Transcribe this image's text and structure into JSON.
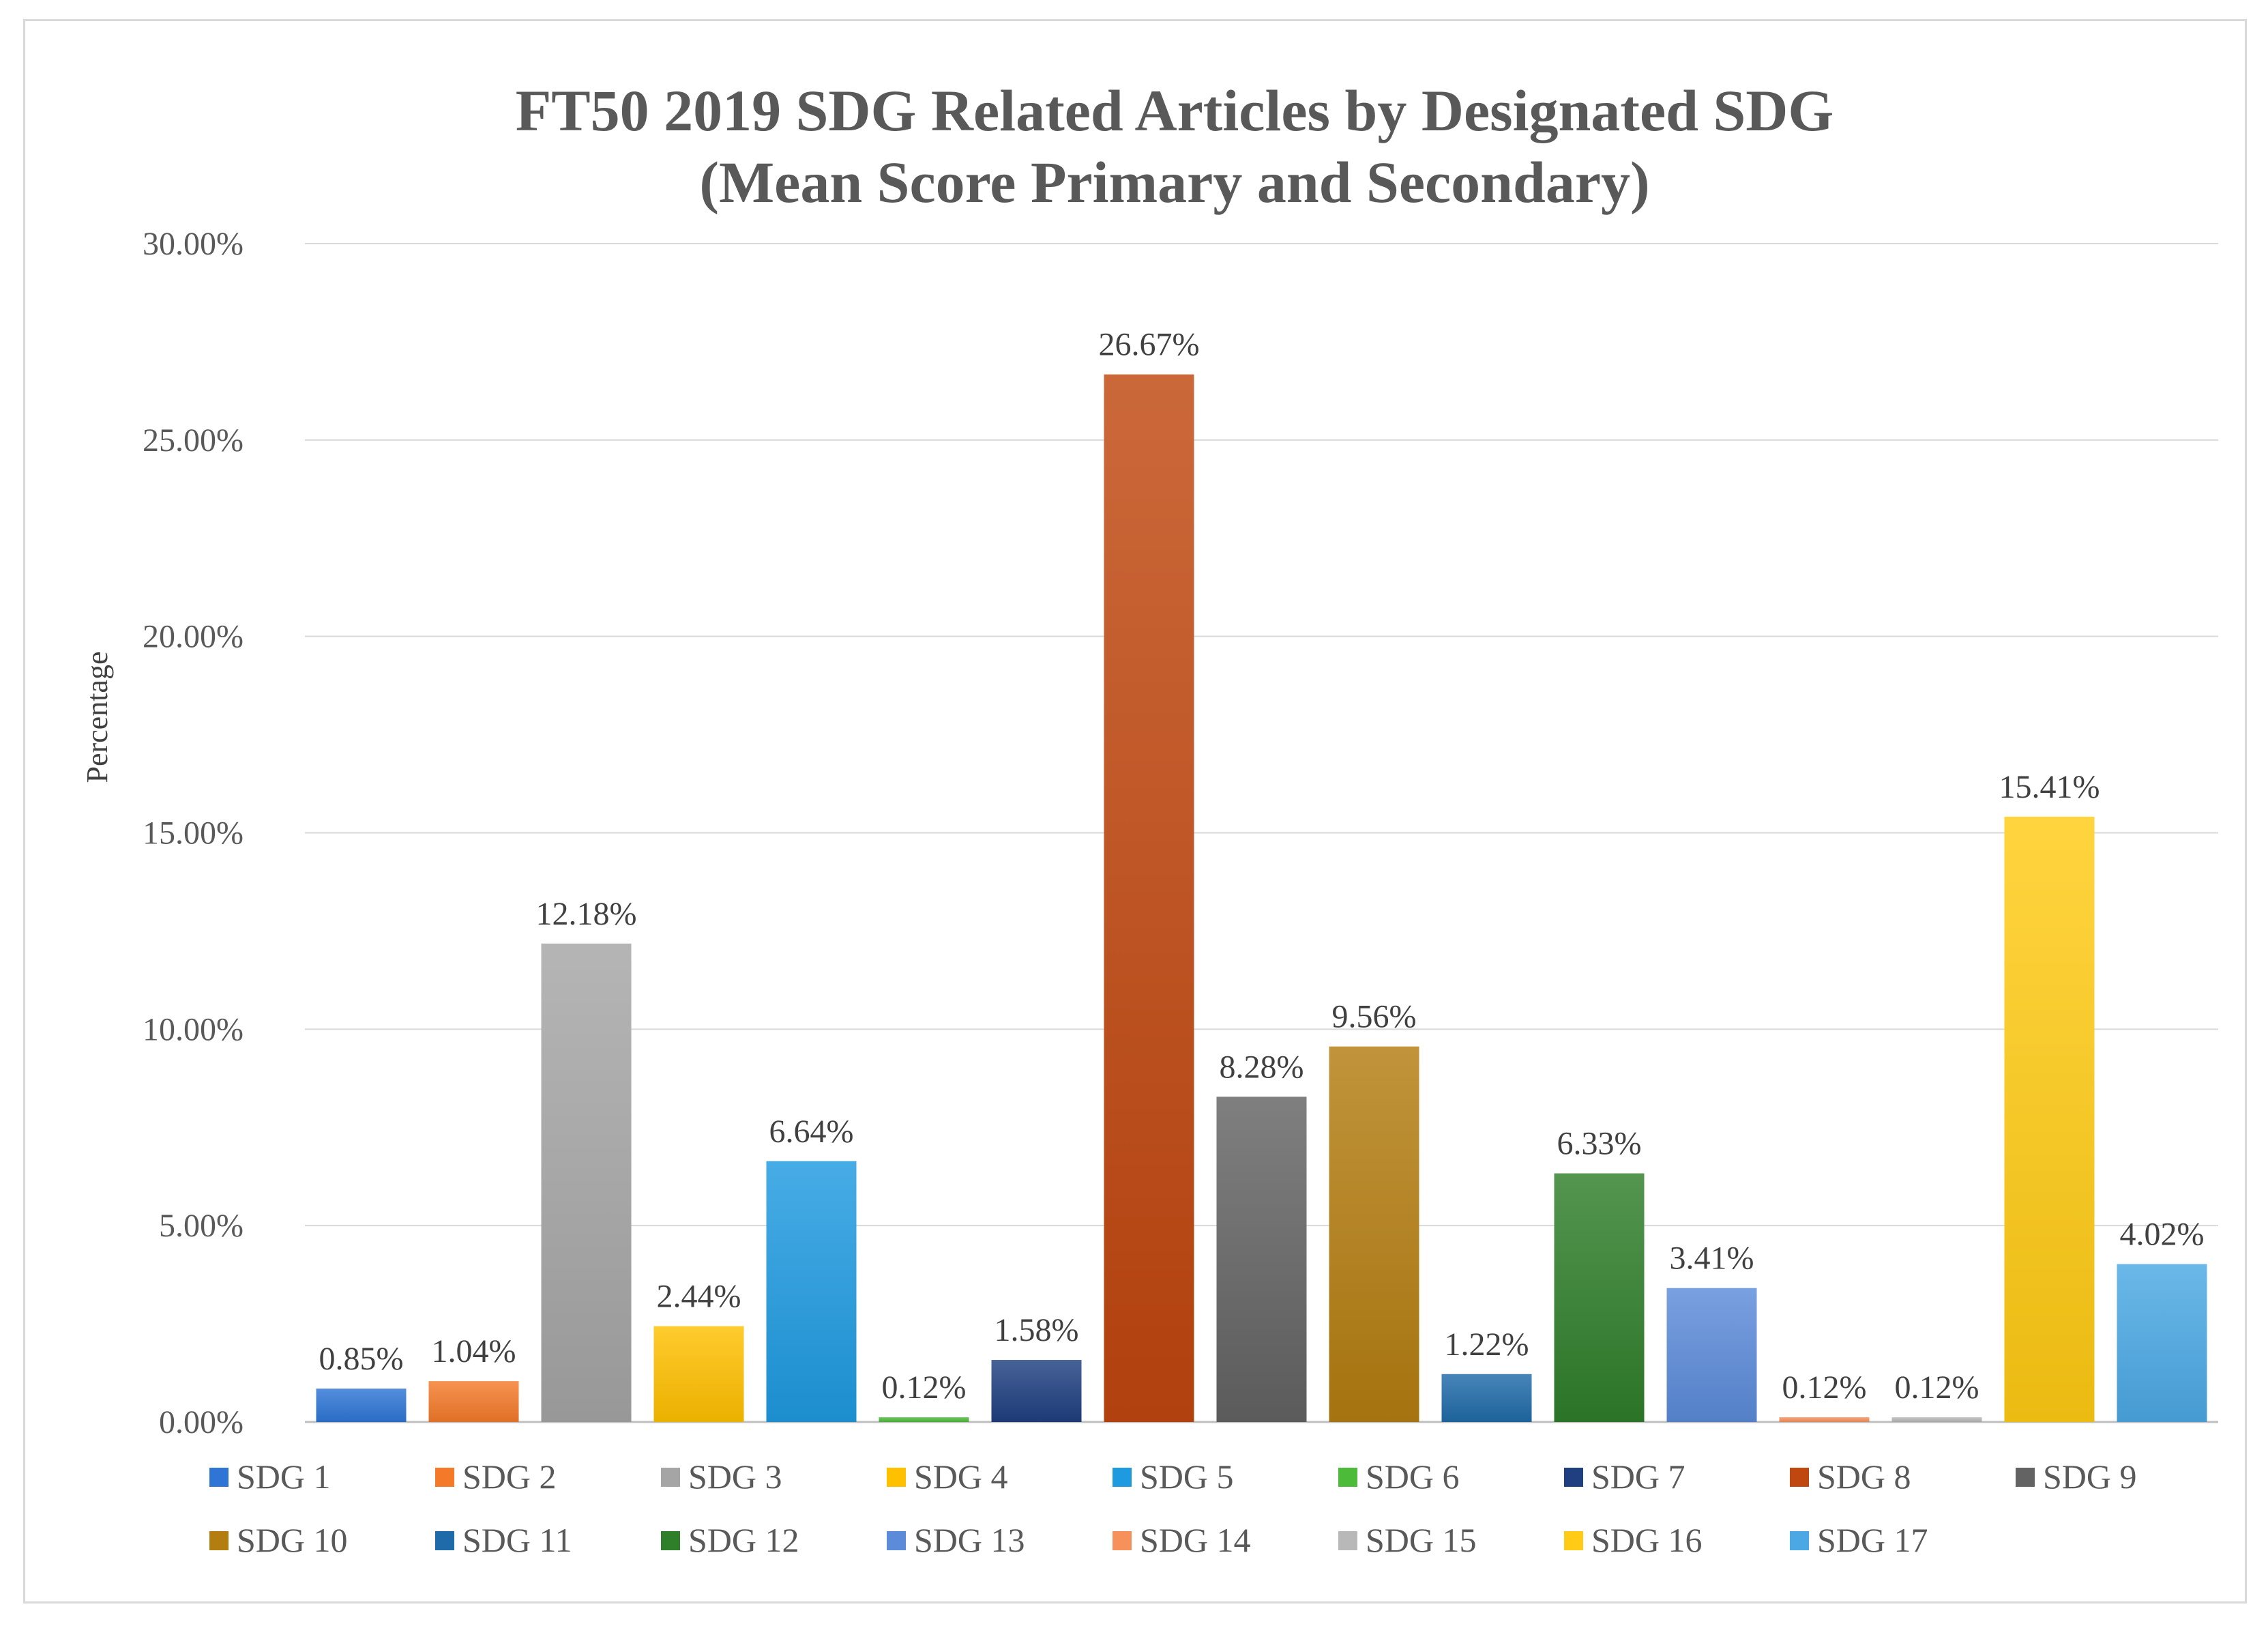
{
  "chart_data": {
    "type": "bar",
    "title": "FT50 2019 SDG Related Articles by Designated SDG",
    "subtitle": "(Mean Score Primary and Secondary)",
    "xlabel": "",
    "ylabel": "Percentage",
    "ylim": [
      0,
      30
    ],
    "yticks": [
      0,
      5,
      10,
      15,
      20,
      25,
      30
    ],
    "ytick_labels": [
      "0.00%",
      "5.00%",
      "10.00%",
      "15.00%",
      "20.00%",
      "25.00%",
      "30.00%"
    ],
    "grid": true,
    "legend_position": "bottom",
    "categories": [
      "SDG 1",
      "SDG 2",
      "SDG 3",
      "SDG 4",
      "SDG 5",
      "SDG 6",
      "SDG 7",
      "SDG 8",
      "SDG 9",
      "SDG 10",
      "SDG 11",
      "SDG 12",
      "SDG 13",
      "SDG 14",
      "SDG 15",
      "SDG 16",
      "SDG 17"
    ],
    "values": [
      0.85,
      1.04,
      12.18,
      2.44,
      6.64,
      0.12,
      1.58,
      26.67,
      8.28,
      9.56,
      1.22,
      6.33,
      3.41,
      0.12,
      0.12,
      15.41,
      4.02
    ],
    "data_labels": [
      "0.85%",
      "1.04%",
      "12.18%",
      "2.44%",
      "6.64%",
      "0.12%",
      "1.58%",
      "26.67%",
      "8.28%",
      "9.56%",
      "1.22%",
      "6.33%",
      "3.41%",
      "0.12%",
      "0.12%",
      "15.41%",
      "4.02%"
    ],
    "colors": [
      "#2E75D6",
      "#F47A2A",
      "#A5A5A5",
      "#FFC000",
      "#1E9AE0",
      "#4CBB3A",
      "#1F3F80",
      "#C0470F",
      "#636363",
      "#B37D10",
      "#1F6AA8",
      "#2F7E2A",
      "#5B8BD9",
      "#F6915C",
      "#B8B8B8",
      "#FFCB14",
      "#4BA8E4"
    ]
  }
}
